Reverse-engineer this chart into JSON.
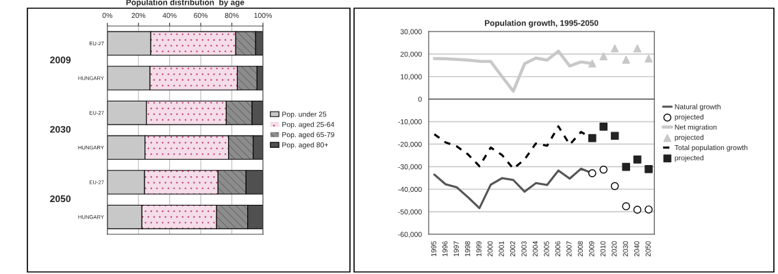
{
  "chart_data": [
    {
      "type": "bar",
      "orientation": "horizontal",
      "stacked": true,
      "title": "Population distribution  by age",
      "categories": [
        "EU-27",
        "HUNGARY",
        "EU-27",
        "HUNGARY",
        "EU-27",
        "HUNGARY"
      ],
      "series": [
        {
          "name": "Pop. under 25",
          "color": "#c8c8c8",
          "values": [
            27.9,
            27.4,
            25.1,
            24.2,
            23.9,
            22.2
          ]
        },
        {
          "name": "Pop. aged 25-64",
          "color": "#f4dde8",
          "values": [
            54.6,
            56.1,
            51.3,
            53.7,
            47.2,
            48.0
          ]
        },
        {
          "name": "Pop. aged 65-79",
          "color": "#8c8c8c",
          "values": [
            12.8,
            12.7,
            16.6,
            15.8,
            18.0,
            20.0
          ]
        },
        {
          "name": "Pop. aged 80+",
          "color": "#505050",
          "values": [
            4.7,
            3.8,
            7.0,
            6.3,
            10.9,
            9.8
          ]
        }
      ],
      "xlim": [
        0,
        100
      ],
      "xticks": [
        {
          "value": 0,
          "label": "0%"
        },
        {
          "value": 20,
          "label": "20%"
        },
        {
          "value": 40,
          "label": "40%"
        },
        {
          "value": 60,
          "label": "60%"
        },
        {
          "value": 80,
          "label": "80%"
        },
        {
          "value": 100,
          "label": "100%"
        }
      ],
      "annotations": [
        "2009",
        "2030",
        "2050"
      ],
      "grid": "x",
      "legend": "right"
    },
    {
      "type": "line",
      "title": "Population growth, 1995-2050",
      "categories": [
        "1995",
        "1996",
        "1997",
        "1998",
        "1999",
        "2000",
        "2001",
        "2002",
        "2003",
        "2004",
        "2005",
        "2006",
        "2007",
        "2008",
        "2009",
        "2010",
        "2020",
        "2030",
        "2040",
        "2050"
      ],
      "series": [
        {
          "name": "Natural growth",
          "type": "line",
          "color": "#555555",
          "values": [
            -33500,
            -37800,
            -39200,
            -43600,
            -48400,
            -38000,
            -35100,
            -35900,
            -41100,
            -37300,
            -38100,
            -31700,
            -35300,
            -30900,
            -32900,
            null,
            null,
            null,
            null,
            null
          ]
        },
        {
          "name": "projected",
          "type": "scatter",
          "marker": "circle",
          "color": "#000000",
          "values": [
            null,
            null,
            null,
            null,
            null,
            null,
            null,
            null,
            null,
            null,
            null,
            null,
            null,
            null,
            -32900,
            -31300,
            -38600,
            -47600,
            -49100,
            -49000
          ]
        },
        {
          "name": "Net migration",
          "type": "line",
          "color": "#c8c8c8",
          "values": [
            18000,
            17900,
            17600,
            17300,
            16800,
            16700,
            10000,
            3500,
            15700,
            18200,
            17300,
            21300,
            14700,
            16500,
            15800,
            null,
            null,
            null,
            null,
            null
          ]
        },
        {
          "name": "projected",
          "type": "scatter",
          "marker": "triangle",
          "color": "#c8c8c8",
          "values": [
            null,
            null,
            null,
            null,
            null,
            null,
            null,
            null,
            null,
            null,
            null,
            null,
            null,
            null,
            15800,
            19000,
            22500,
            17500,
            22500,
            18000
          ]
        },
        {
          "name": "Total population growth",
          "type": "line",
          "line_style": "dashed",
          "color": "#000000",
          "values": [
            -15600,
            -19200,
            -21000,
            -24600,
            -29800,
            -21500,
            -24800,
            -30900,
            -26800,
            -19700,
            -20700,
            -12100,
            -20200,
            -14600,
            -17300,
            null,
            null,
            null,
            null,
            null
          ]
        },
        {
          "name": "projected",
          "type": "scatter",
          "marker": "square",
          "color": "#222222",
          "values": [
            null,
            null,
            null,
            null,
            null,
            null,
            null,
            null,
            null,
            null,
            null,
            null,
            null,
            null,
            -17300,
            -12200,
            -16300,
            -30100,
            -26800,
            -31100
          ]
        }
      ],
      "ylim": [
        -60000,
        30000
      ],
      "yticks": [
        {
          "value": -60000,
          "label": "-60,000"
        },
        {
          "value": -50000,
          "label": "-50,000"
        },
        {
          "value": -40000,
          "label": "-40,000"
        },
        {
          "value": -30000,
          "label": "-30,000"
        },
        {
          "value": -20000,
          "label": "-20,000"
        },
        {
          "value": -10000,
          "label": "-10,000"
        },
        {
          "value": 0,
          "label": "0"
        },
        {
          "value": 10000,
          "label": "10,000"
        },
        {
          "value": 20000,
          "label": "20,000"
        },
        {
          "value": 30000,
          "label": "30,000"
        }
      ],
      "grid": "y",
      "legend": "right"
    }
  ]
}
